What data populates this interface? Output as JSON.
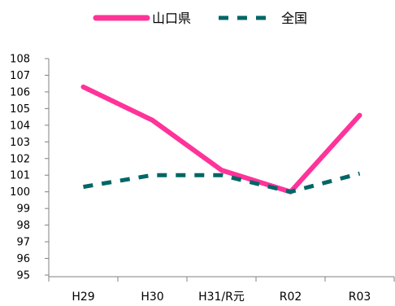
{
  "chart_data": {
    "type": "line",
    "categories": [
      "H29",
      "H30",
      "H31/R元",
      "R02",
      "R03"
    ],
    "series": [
      {
        "name": "山口県",
        "values": [
          106.3,
          104.3,
          101.3,
          100.0,
          104.6
        ],
        "color": "#ff3399",
        "style": "solid"
      },
      {
        "name": "全国",
        "values": [
          100.3,
          101.0,
          101.0,
          100.0,
          101.1
        ],
        "color": "#006666",
        "style": "dashed"
      }
    ],
    "yticks": [
      95,
      96,
      97,
      98,
      99,
      100,
      101,
      102,
      103,
      104,
      105,
      106,
      107,
      108
    ],
    "ylim": [
      95,
      108
    ],
    "grid": false,
    "legend_position": "top-center"
  }
}
